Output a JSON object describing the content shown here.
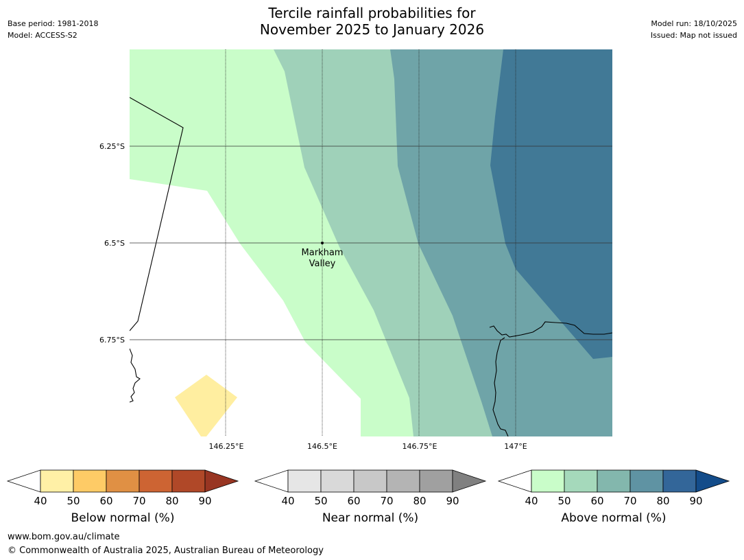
{
  "header": {
    "title_line1": "Tercile rainfall probabilities for",
    "title_line2": "November 2025 to January 2026",
    "base_period": "Base period: 1981-2018",
    "model": "Model: ACCESS-S2",
    "model_run": "Model run: 18/10/2025",
    "issued": "Issued: Map not issued"
  },
  "map": {
    "lat_labels": [
      "6.25°S",
      "6.5°S",
      "6.75°S"
    ],
    "lon_labels": [
      "146.25°E",
      "146.5°E",
      "146.75°E",
      "147°E"
    ],
    "place": {
      "name_line1": "Markham",
      "name_line2": "Valley"
    }
  },
  "colorbars": [
    {
      "title": "Below normal (%)",
      "ticks": [
        "40",
        "50",
        "60",
        "70",
        "80",
        "90"
      ],
      "colors": [
        "#fff0a6",
        "#fecb66",
        "#e09044",
        "#cd6433",
        "#b04828",
        "#983522"
      ]
    },
    {
      "title": "Near normal (%)",
      "ticks": [
        "40",
        "50",
        "60",
        "70",
        "80",
        "90"
      ],
      "colors": [
        "#e6e6e6",
        "#d9d9d9",
        "#c8c8c8",
        "#b4b4b4",
        "#a0a0a0",
        "#808080"
      ]
    },
    {
      "title": "Above normal (%)",
      "ticks": [
        "40",
        "50",
        "60",
        "70",
        "80",
        "90"
      ],
      "colors": [
        "#c9fdc9",
        "#a5d9bb",
        "#83b7ad",
        "#5f93a3",
        "#336699",
        "#134c8a"
      ]
    }
  ],
  "footer": {
    "url": "www.bom.gov.au/climate",
    "copyright": "© Commonwealth of Australia 2025, Australian Bureau of Meteorology"
  }
}
